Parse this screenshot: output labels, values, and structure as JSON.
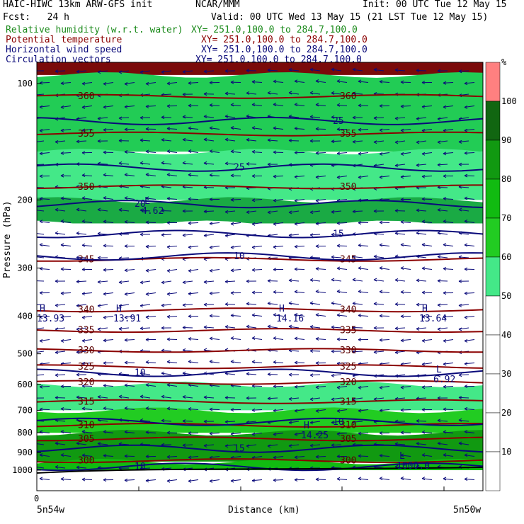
{
  "header": {
    "model": "HAIC-HIWC 13km ARW-GFS init",
    "org": "NCAR/MMM",
    "init": "Init: 00 UTC Tue 12 May 15",
    "fcst": "Fcst:   24 h",
    "valid": "Valid: 00 UTC Wed 13 May 15 (21 LST Tue 12 May 15)",
    "fields": [
      {
        "name": "Relative humidity (w.r.t. water)",
        "xy": "XY= 251.0,100.0 to 284.7,100.0",
        "color": "#1a8a1a"
      },
      {
        "name": "Potential temperature",
        "xy": "XY= 251.0,100.0 to 284.7,100.0",
        "color": "#8b0000"
      },
      {
        "name": "Horizontal wind speed",
        "xy": "XY= 251.0,100.0 to 284.7,100.0",
        "color": "#0a0a7a"
      },
      {
        "name": "Circulation vectors",
        "xy": "XY= 251.0,100.0 to 284.7,100.0",
        "color": "#0a0a7a"
      }
    ]
  },
  "chart_data": {
    "type": "heatmap",
    "title": "Relative humidity (w.r.t. water)",
    "xlabel": "Distance (km)",
    "ylabel": "Pressure (hPa)",
    "x_tick_labels": [
      "0",
      "5n54w",
      "5n50w"
    ],
    "y_ticks": [
      100,
      200,
      300,
      400,
      500,
      600,
      700,
      800,
      900,
      1000
    ],
    "ylim": [
      1050,
      60
    ],
    "y_scale": "log-pressure",
    "colorbar": {
      "unit": "%",
      "levels": [
        10,
        20,
        30,
        40,
        50,
        60,
        70,
        80,
        90,
        100
      ],
      "colors": [
        "#ffffff",
        "#ffffff",
        "#ffffff",
        "#ffffff",
        "#ffffff",
        "#44e888",
        "#22cc22",
        "#11bb11",
        "#119911",
        "#116611",
        "#ff8080"
      ]
    },
    "rh_bands": [
      {
        "p_top": 60,
        "p_bot": 95,
        "rh": "100+",
        "color": "#7a0a0a"
      },
      {
        "p_top": 95,
        "p_bot": 150,
        "rh": "80-100",
        "color": "#22cc55"
      },
      {
        "p_top": 150,
        "p_bot": 200,
        "rh": "50-60",
        "color": "#44e888"
      },
      {
        "p_top": 200,
        "p_bot": 230,
        "rh": "80-90",
        "color": "#1aaa44"
      },
      {
        "p_top": 230,
        "p_bot": 600,
        "rh": "<50",
        "color": "#ffffff"
      },
      {
        "p_top": 600,
        "p_bot": 700,
        "rh": "50-60",
        "color": "#44e888"
      },
      {
        "p_top": 700,
        "p_bot": 800,
        "rh": "60-70",
        "color": "#22cc22"
      },
      {
        "p_top": 800,
        "p_bot": 950,
        "rh": "80-90",
        "color": "#119911"
      },
      {
        "p_top": 950,
        "p_bot": 1000,
        "rh": "70-80",
        "color": "#11bb11"
      }
    ],
    "theta_contours": [
      {
        "level": "300",
        "p": 945
      },
      {
        "level": "305",
        "p": 830
      },
      {
        "level": "310",
        "p": 765
      },
      {
        "level": "315",
        "p": 665
      },
      {
        "level": "320",
        "p": 593
      },
      {
        "level": "325",
        "p": 540
      },
      {
        "level": "330",
        "p": 490
      },
      {
        "level": "335",
        "p": 435
      },
      {
        "level": "340",
        "p": 385
      },
      {
        "level": "345",
        "p": 285
      },
      {
        "level": "350",
        "p": 185
      },
      {
        "level": "355",
        "p": 135
      },
      {
        "level": "360",
        "p": 108
      }
    ],
    "wind_speed_contours": [
      {
        "level": "10",
        "p": 980
      },
      {
        "level": "15",
        "p": 880
      },
      {
        "level": "10",
        "p": 750
      },
      {
        "level": "10",
        "p": 560
      },
      {
        "level": "10",
        "p": 280
      },
      {
        "level": "15",
        "p": 245
      },
      {
        "level": "20",
        "p": 205
      },
      {
        "level": "25",
        "p": 165
      },
      {
        "level": "25",
        "p": 125
      }
    ],
    "extrema_labels": [
      {
        "type": "H",
        "value": "13.93"
      },
      {
        "type": "H",
        "value": "13.91"
      },
      {
        "type": "H",
        "value": "14.16"
      },
      {
        "type": "H",
        "value": "13.64"
      },
      {
        "type": "L",
        "value": "4.62"
      },
      {
        "type": "L",
        "value": "6.92"
      },
      {
        "type": "H",
        "value": "14.25"
      },
      {
        "type": "L",
        "value": "1000.0"
      }
    ],
    "grid": false,
    "legend": "right"
  }
}
